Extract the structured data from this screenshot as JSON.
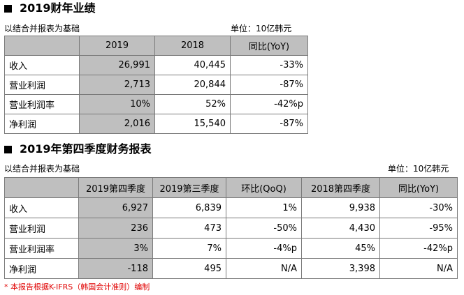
{
  "annual": {
    "title": "2019财年业绩",
    "basis": "以结合并报表为基础",
    "unit": "单位：10亿韩元",
    "headers": [
      "",
      "2019",
      "2018",
      "同比(YoY)"
    ],
    "rows": [
      [
        "收入",
        "26,991",
        "40,445",
        "-33%"
      ],
      [
        "营业利润",
        "2,713",
        "20,844",
        "-87%"
      ],
      [
        "营业利润率",
        "10%",
        "52%",
        "-42%p"
      ],
      [
        "净利润",
        "2,016",
        "15,540",
        "-87%"
      ]
    ]
  },
  "quarter": {
    "title": "2019年第四季度财务报表",
    "basis": "以结合并报表为基础",
    "unit": "单位：10亿韩元",
    "headers": [
      "",
      "2019第四季度",
      "2019第三季度",
      "环比(QoQ)",
      "2018第四季度",
      "同比(YoY)"
    ],
    "rows": [
      [
        "收入",
        "6,927",
        "6,839",
        "1%",
        "9,938",
        "-30%"
      ],
      [
        "营业利润",
        "236",
        "473",
        "-50%",
        "4,430",
        "-95%"
      ],
      [
        "营业利润率",
        "3%",
        "7%",
        "-4%p",
        "45%",
        "-42%p"
      ],
      [
        "净利润",
        "-118",
        "495",
        "N/A",
        "3,398",
        "N/A"
      ]
    ]
  },
  "footnote": "*  本报告根据K-IFRS（韩国会计准则）编制",
  "colors": {
    "header_fill": "#bfbfbf",
    "highlight_fill": "#bfbfbf",
    "footnote": "#e00000"
  }
}
